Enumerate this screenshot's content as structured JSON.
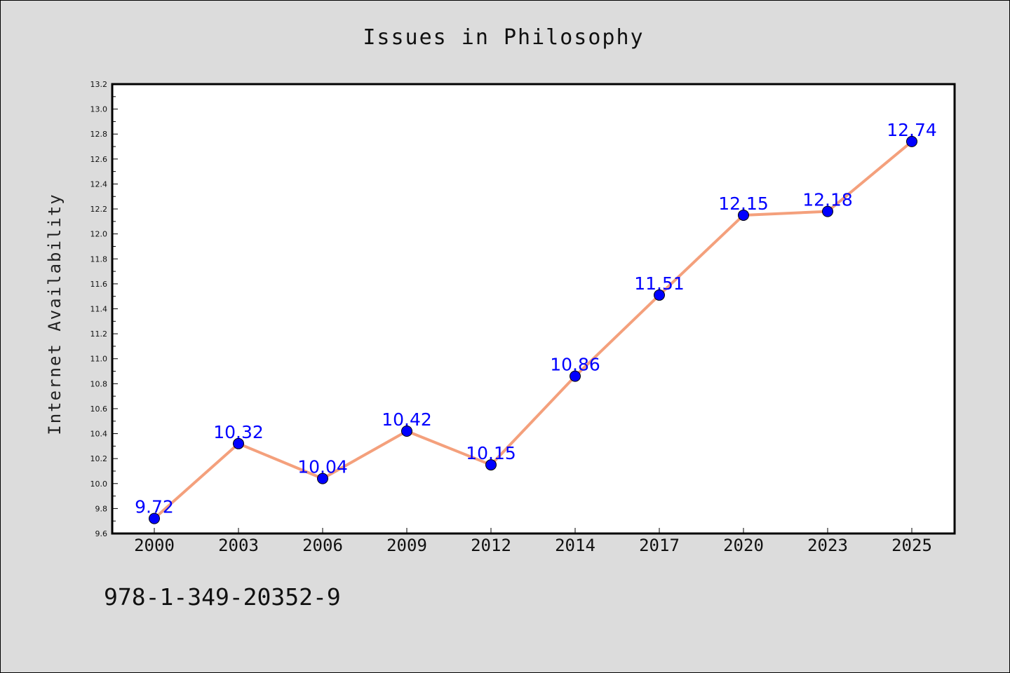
{
  "chart_data": {
    "type": "line",
    "title": "Issues in Philosophy",
    "xlabel": "",
    "ylabel": "Internet Availability",
    "categories": [
      "2000",
      "2003",
      "2006",
      "2009",
      "2012",
      "2014",
      "2017",
      "2020",
      "2023",
      "2025"
    ],
    "series": [
      {
        "values": [
          9.72,
          10.32,
          10.04,
          10.42,
          10.15,
          10.86,
          11.51,
          12.15,
          12.18,
          12.74
        ],
        "labels": [
          "9.72",
          "10.32",
          "10.04",
          "10.42",
          "10.15",
          "10.86",
          "11.51",
          "12.15",
          "12.18",
          "12.74"
        ]
      }
    ],
    "ylim": [
      9.6,
      13.2
    ],
    "yticks": [
      "9.6",
      "9.8",
      "10.0",
      "10.2",
      "10.4",
      "10.6",
      "10.8",
      "11.0",
      "11.2",
      "11.4",
      "11.6",
      "11.8",
      "12.0",
      "12.2",
      "12.4",
      "12.6",
      "12.8",
      "13.0",
      "13.2"
    ],
    "grid": false,
    "legend": "none",
    "colors": {
      "line": "#f4a07c",
      "marker": "#0000ff",
      "labels": "#0000ff",
      "plot_background": "#ffffff",
      "page_background": "#dcdcdc"
    }
  },
  "footer": {
    "code": "978-1-349-20352-9"
  }
}
